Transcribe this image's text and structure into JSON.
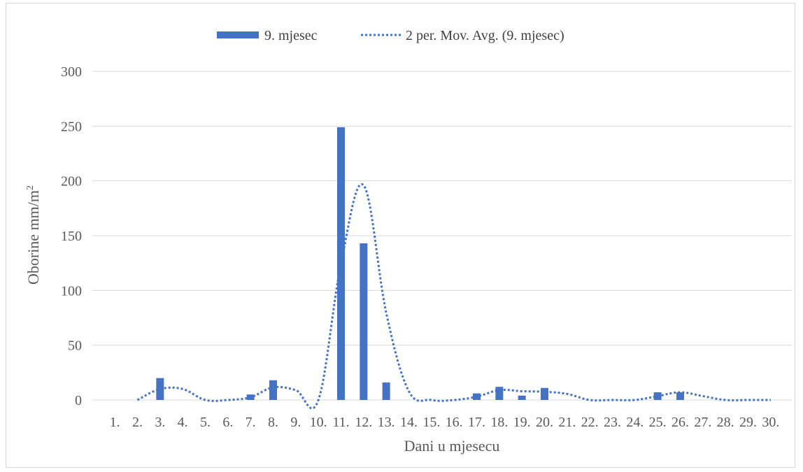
{
  "chart_data": {
    "type": "bar",
    "xlabel": "Dani u mjesecu",
    "ylabel": "Oborine mm/m",
    "ylabel_superscript": "2",
    "ylim": [
      0,
      300
    ],
    "yticks": [
      0,
      50,
      100,
      150,
      200,
      250,
      300
    ],
    "grid": true,
    "legend_position": "top",
    "categories": [
      "1.",
      "2.",
      "3.",
      "4.",
      "5.",
      "6.",
      "7.",
      "8.",
      "9.",
      "10.",
      "11.",
      "12.",
      "13.",
      "14.",
      "15.",
      "16.",
      "17.",
      "18.",
      "19.",
      "20.",
      "21.",
      "22.",
      "23.",
      "24.",
      "25.",
      "26.",
      "27.",
      "28.",
      "29.",
      "30."
    ],
    "series": [
      {
        "name": "9. mjesec",
        "type": "bar",
        "color": "#4472C4",
        "values": [
          0,
          0,
          20,
          0,
          0,
          0,
          5,
          18,
          0,
          0,
          249,
          143,
          16,
          0,
          0,
          0,
          6,
          12,
          4,
          11,
          0,
          0,
          0,
          0,
          7,
          7,
          0,
          0,
          0,
          0
        ]
      },
      {
        "name": "2 per. Mov. Avg. (9. mjesec)",
        "type": "line",
        "style": "dotted",
        "color": "#4472C4",
        "values": [
          null,
          0,
          10,
          10,
          0,
          0,
          2.5,
          11.5,
          9,
          0,
          124.5,
          196,
          79.5,
          8,
          0,
          0,
          3,
          9,
          8,
          7.5,
          5.5,
          0,
          0,
          0,
          3.5,
          7,
          3.5,
          0,
          0,
          0
        ]
      }
    ]
  }
}
